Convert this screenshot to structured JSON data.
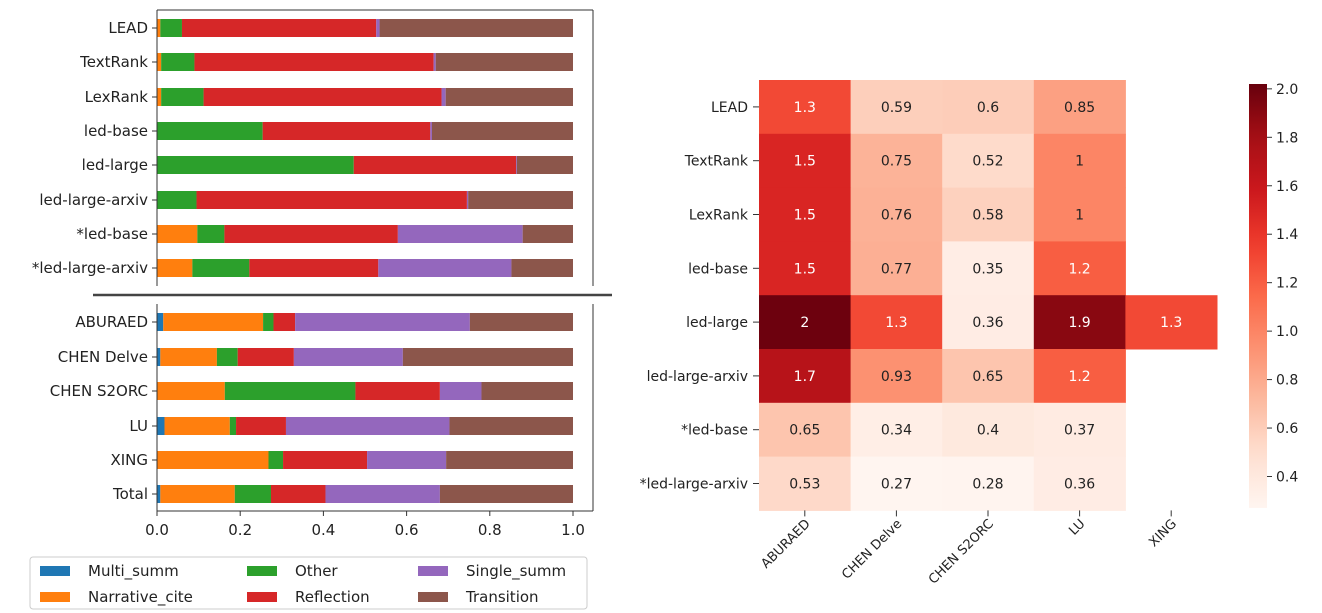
{
  "chart_data": [
    {
      "type": "bar",
      "orientation": "horizontal",
      "stacked": true,
      "xlim": [
        0,
        1
      ],
      "xticks": [
        "0.0",
        "0.2",
        "0.4",
        "0.6",
        "0.8",
        "1.0"
      ],
      "legend_placement": "bottom",
      "category_groups": [
        [
          "LEAD",
          "TextRank",
          "LexRank",
          "led-base",
          "led-large",
          "led-large-arxiv",
          "*led-base",
          "*led-large-arxiv"
        ],
        [
          "ABURAED",
          "CHEN Delve",
          "CHEN S2ORC",
          "LU",
          "XING",
          "Total"
        ]
      ],
      "categories": [
        "LEAD",
        "TextRank",
        "LexRank",
        "led-base",
        "led-large",
        "led-large-arxiv",
        "*led-base",
        "*led-large-arxiv",
        "ABURAED",
        "CHEN Delve",
        "CHEN S2ORC",
        "LU",
        "XING",
        "Total"
      ],
      "series": [
        {
          "name": "Multi_summ",
          "color": "#1f77b4",
          "values": [
            0.0,
            0.0,
            0.0,
            0.0,
            0.0,
            0.0,
            0.0,
            0.0,
            0.015,
            0.008,
            0.0,
            0.018,
            0.0,
            0.008
          ]
        },
        {
          "name": "Narrative_cite",
          "color": "#ff7f0e",
          "values": [
            0.008,
            0.01,
            0.01,
            0.0,
            0.0,
            0.0,
            0.097,
            0.085,
            0.24,
            0.136,
            0.163,
            0.157,
            0.268,
            0.179
          ]
        },
        {
          "name": "Other",
          "color": "#2ca02c",
          "values": [
            0.052,
            0.08,
            0.102,
            0.254,
            0.473,
            0.095,
            0.065,
            0.137,
            0.025,
            0.05,
            0.314,
            0.015,
            0.035,
            0.087
          ]
        },
        {
          "name": "Reflection",
          "color": "#d62728",
          "values": [
            0.467,
            0.575,
            0.572,
            0.403,
            0.39,
            0.65,
            0.417,
            0.31,
            0.052,
            0.135,
            0.203,
            0.12,
            0.202,
            0.131
          ]
        },
        {
          "name": "Single_summ",
          "color": "#9467bd",
          "values": [
            0.008,
            0.005,
            0.01,
            0.004,
            0.002,
            0.003,
            0.3,
            0.32,
            0.42,
            0.262,
            0.1,
            0.393,
            0.19,
            0.275
          ]
        },
        {
          "name": "Transition",
          "color": "#8c564b",
          "values": [
            0.465,
            0.33,
            0.306,
            0.339,
            0.135,
            0.252,
            0.121,
            0.148,
            0.248,
            0.409,
            0.22,
            0.297,
            0.305,
            0.32
          ]
        }
      ]
    },
    {
      "type": "heatmap",
      "rows": [
        "LEAD",
        "TextRank",
        "LexRank",
        "led-base",
        "led-large",
        "led-large-arxiv",
        "*led-base",
        "*led-large-arxiv"
      ],
      "columns": [
        "ABURAED",
        "CHEN Delve",
        "CHEN S2ORC",
        "LU",
        "XING"
      ],
      "values": [
        [
          1.3,
          0.59,
          0.6,
          0.85,
          null
        ],
        [
          1.5,
          0.75,
          0.52,
          1.0,
          null
        ],
        [
          1.5,
          0.76,
          0.58,
          1.0,
          null
        ],
        [
          1.5,
          0.77,
          0.35,
          1.2,
          null
        ],
        [
          2.0,
          1.3,
          0.36,
          1.9,
          1.3
        ],
        [
          1.7,
          0.93,
          0.65,
          1.2,
          null
        ],
        [
          0.65,
          0.34,
          0.4,
          0.37,
          null
        ],
        [
          0.53,
          0.27,
          0.28,
          0.36,
          null
        ]
      ],
      "cell_labels": [
        [
          "1.3",
          "0.59",
          "0.6",
          "0.85",
          ""
        ],
        [
          "1.5",
          "0.75",
          "0.52",
          "1",
          ""
        ],
        [
          "1.5",
          "0.76",
          "0.58",
          "1",
          ""
        ],
        [
          "1.5",
          "0.77",
          "0.35",
          "1.2",
          ""
        ],
        [
          "2",
          "1.3",
          "0.36",
          "1.9",
          "1.3"
        ],
        [
          "1.7",
          "0.93",
          "0.65",
          "1.2",
          ""
        ],
        [
          "0.65",
          "0.34",
          "0.4",
          "0.37",
          ""
        ],
        [
          "0.53",
          "0.27",
          "0.28",
          "0.36",
          ""
        ]
      ],
      "colorbar": {
        "range": [
          0.27,
          2.02
        ],
        "ticks": [
          "0.4",
          "0.6",
          "0.8",
          "1.0",
          "1.2",
          "1.4",
          "1.6",
          "1.8",
          "2.0"
        ],
        "colormap": "Reds"
      }
    }
  ]
}
